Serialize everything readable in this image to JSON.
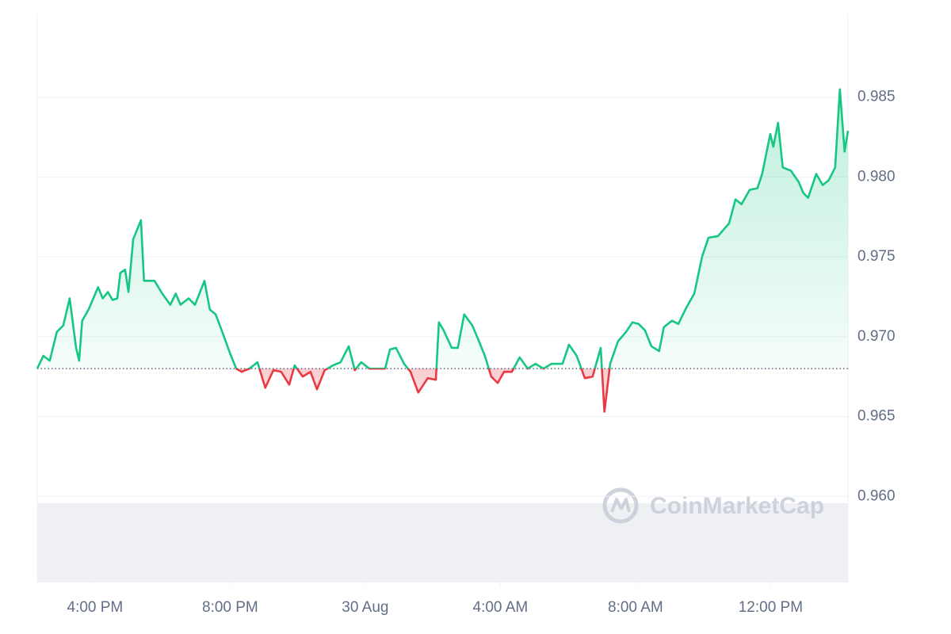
{
  "chart_data": {
    "type": "line",
    "watermark": "CoinMarketCap",
    "baseline": 0.968,
    "up_color": "#16c784",
    "down_color": "#ea3943",
    "grid": true,
    "xlim": [
      14.29,
      38.29
    ],
    "ylim": [
      0.9546,
      0.9902
    ],
    "xticks": [
      {
        "value": 16,
        "label": "4:00 PM"
      },
      {
        "value": 20,
        "label": "8:00 PM"
      },
      {
        "value": 24,
        "label": "30 Aug"
      },
      {
        "value": 28,
        "label": "4:00 AM"
      },
      {
        "value": 32,
        "label": "8:00 AM"
      },
      {
        "value": 36,
        "label": "12:00 PM"
      }
    ],
    "yticks": [
      {
        "value": 0.96,
        "label": "0.960"
      },
      0.965,
      {
        "value": 0.97,
        "label": "0.970"
      },
      0.975,
      {
        "value": 0.98,
        "label": "0.980"
      },
      0.985
    ],
    "x": [
      14.29,
      14.47,
      14.66,
      14.87,
      15.06,
      15.25,
      15.44,
      15.53,
      15.62,
      15.81,
      15.95,
      16.09,
      16.23,
      16.38,
      16.52,
      16.66,
      16.75,
      16.89,
      16.99,
      17.13,
      17.36,
      17.45,
      17.76,
      17.99,
      18.23,
      18.39,
      18.53,
      18.77,
      18.96,
      19.24,
      19.4,
      19.57,
      19.75,
      19.99,
      20.18,
      20.34,
      20.57,
      20.81,
      21.04,
      21.28,
      21.51,
      21.75,
      21.91,
      22.15,
      22.38,
      22.57,
      22.8,
      23.04,
      23.27,
      23.51,
      23.69,
      23.88,
      24.12,
      24.35,
      24.59,
      24.73,
      24.91,
      25.15,
      25.34,
      25.57,
      25.85,
      26.09,
      26.18,
      26.32,
      26.56,
      26.74,
      26.93,
      27.17,
      27.35,
      27.54,
      27.73,
      27.92,
      28.11,
      28.34,
      28.57,
      28.81,
      29.04,
      29.28,
      29.51,
      29.84,
      30.03,
      30.26,
      30.5,
      30.73,
      30.97,
      31.08,
      31.25,
      31.48,
      31.72,
      31.91,
      32.09,
      32.28,
      32.47,
      32.7,
      32.84,
      33.08,
      33.27,
      33.5,
      33.74,
      33.97,
      34.16,
      34.44,
      34.77,
      34.96,
      35.14,
      35.38,
      35.61,
      35.75,
      35.99,
      36.08,
      36.22,
      36.36,
      36.6,
      36.83,
      36.97,
      37.11,
      37.35,
      37.54,
      37.72,
      37.91,
      38.05,
      38.19,
      38.29
    ],
    "values": [
      0.968,
      0.9688,
      0.9685,
      0.9703,
      0.9707,
      0.9724,
      0.9693,
      0.9685,
      0.971,
      0.9717,
      0.9724,
      0.9731,
      0.9724,
      0.9728,
      0.9723,
      0.9724,
      0.974,
      0.9742,
      0.9728,
      0.9761,
      0.9773,
      0.9735,
      0.9735,
      0.9727,
      0.972,
      0.9727,
      0.972,
      0.9724,
      0.972,
      0.9735,
      0.9717,
      0.9714,
      0.9704,
      0.969,
      0.968,
      0.9678,
      0.968,
      0.9684,
      0.9668,
      0.9679,
      0.9678,
      0.967,
      0.9682,
      0.9675,
      0.9678,
      0.9667,
      0.9679,
      0.9682,
      0.9684,
      0.9694,
      0.9679,
      0.9684,
      0.968,
      0.968,
      0.968,
      0.9692,
      0.9693,
      0.9683,
      0.9678,
      0.9665,
      0.9674,
      0.9673,
      0.9709,
      0.9704,
      0.9693,
      0.9693,
      0.9714,
      0.9707,
      0.9698,
      0.9688,
      0.9675,
      0.9671,
      0.9678,
      0.9678,
      0.9687,
      0.968,
      0.9683,
      0.968,
      0.9683,
      0.9683,
      0.9695,
      0.9688,
      0.9674,
      0.9675,
      0.9693,
      0.9653,
      0.9683,
      0.9697,
      0.9703,
      0.9709,
      0.9708,
      0.9704,
      0.9694,
      0.9691,
      0.9706,
      0.971,
      0.9708,
      0.9718,
      0.9727,
      0.975,
      0.9762,
      0.9763,
      0.9771,
      0.9786,
      0.9783,
      0.9792,
      0.9793,
      0.9802,
      0.9827,
      0.9819,
      0.9834,
      0.9806,
      0.9804,
      0.9797,
      0.979,
      0.9787,
      0.9802,
      0.9795,
      0.9798,
      0.9806,
      0.9855,
      0.9816,
      0.9829
    ]
  }
}
